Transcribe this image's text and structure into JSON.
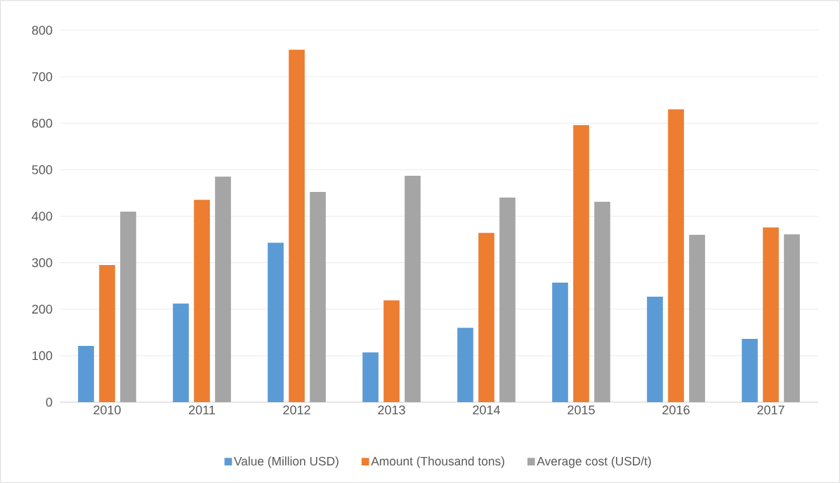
{
  "chart_data": {
    "type": "bar",
    "categories": [
      "2010",
      "2011",
      "2012",
      "2013",
      "2014",
      "2015",
      "2016",
      "2017"
    ],
    "series": [
      {
        "name": "Value (Million USD)",
        "color": "#5b9bd5",
        "values": [
          121,
          212,
          343,
          107,
          160,
          257,
          227,
          136
        ]
      },
      {
        "name": "Amount (Thousand tons)",
        "color": "#ed7d31",
        "values": [
          295,
          435,
          758,
          219,
          364,
          596,
          630,
          376
        ]
      },
      {
        "name": "Average cost (USD/t)",
        "color": "#a5a5a5",
        "values": [
          410,
          485,
          452,
          487,
          440,
          431,
          360,
          361
        ]
      }
    ],
    "ylim": [
      0,
      800
    ],
    "yticks": [
      0,
      100,
      200,
      300,
      400,
      500,
      600,
      700,
      800
    ],
    "grid": "y",
    "legend": "bottom"
  }
}
